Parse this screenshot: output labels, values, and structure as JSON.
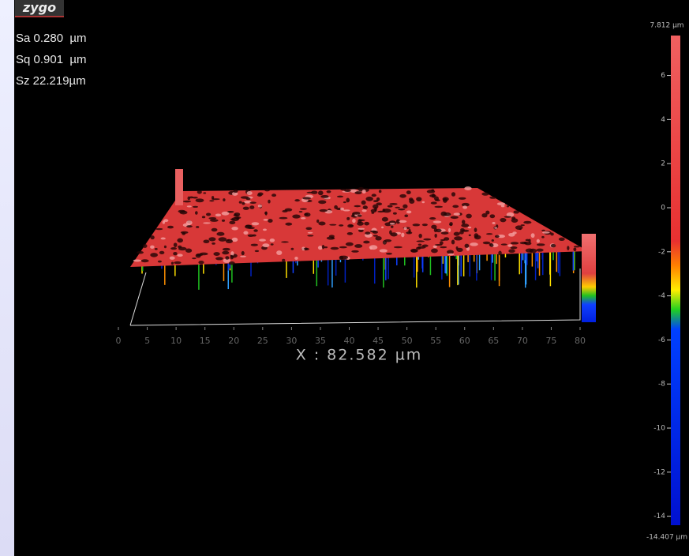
{
  "logo": "zygo",
  "stats": [
    "Sa 0.280  µm",
    "Sq 0.901  µm",
    "Sz 22.219µm"
  ],
  "colorbar": {
    "max": {
      "value": 7.812,
      "label": "7.812 µm"
    },
    "min": {
      "value": -14.407,
      "label": "-14.407 µm"
    },
    "ticks": [
      6,
      4,
      2,
      0,
      -2,
      -4,
      -6,
      -8,
      -10,
      -12,
      -14
    ]
  },
  "x_axis": {
    "ticks": [
      0,
      5,
      10,
      15,
      20,
      25,
      30,
      35,
      40,
      45,
      50,
      55,
      60,
      65,
      70,
      75,
      80
    ],
    "xlim": [
      0,
      80
    ],
    "label": "X : 82.582 µm"
  }
}
